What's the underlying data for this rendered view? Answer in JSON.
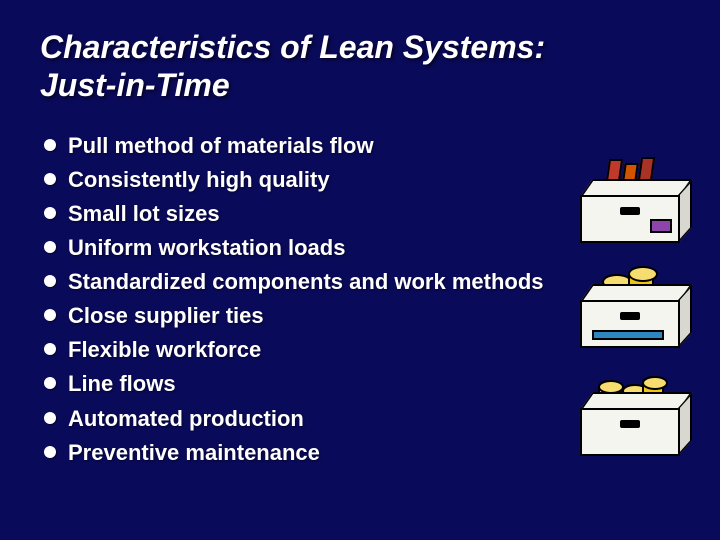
{
  "background_color": "#0a0a5a",
  "text_color": "#ffffff",
  "title": {
    "line1": "Characteristics of Lean Systems:",
    "line2": "Just-in-Time",
    "font_size": 32,
    "font_style": "bold italic"
  },
  "bullets": [
    "Pull method of materials flow",
    "Consistently high quality",
    "Small lot sizes",
    "Uniform workstation loads",
    "Standardized components and work methods",
    "Close supplier ties",
    "Flexible workforce",
    "Line flows",
    "Automated production",
    "Preventive maintenance"
  ],
  "bullet_style": {
    "font_size": 22,
    "font_weight": "bold",
    "marker": "filled-circle",
    "marker_color": "#ffffff"
  },
  "illustrations": [
    {
      "name": "box-with-red-folders",
      "box_fill": "#f5f5f0",
      "box_border": "#000000",
      "contents_colors": [
        "#c0392b",
        "#d35400",
        "#a93226"
      ],
      "accent_chip": "#8e44ad"
    },
    {
      "name": "box-with-yellow-cylinders-and-blue-bar",
      "box_fill": "#f5f5f0",
      "cylinder_color": "#f1c40f",
      "bar_color": "#2e86c1"
    },
    {
      "name": "box-with-three-yellow-cylinders",
      "box_fill": "#f5f5f0",
      "cylinder_color": "#f1c40f"
    }
  ]
}
